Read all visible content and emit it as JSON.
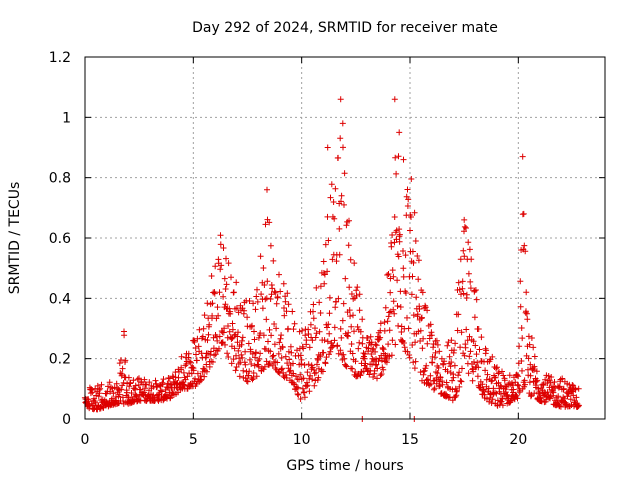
{
  "chart_data": {
    "type": "scatter",
    "title": "Day 292 of 2024, SRMTID for receiver mate",
    "xlabel": "GPS time / hours",
    "ylabel": "SRMTID / TECUs",
    "xlim": [
      0,
      24
    ],
    "ylim": [
      0,
      1.2
    ],
    "xticks": [
      0,
      5,
      10,
      15,
      20
    ],
    "xtick_labels": [
      "0",
      "5",
      "10",
      "15",
      "20"
    ],
    "yticks": [
      0,
      0.2,
      0.4,
      0.6,
      0.8,
      1.0,
      1.2
    ],
    "ytick_labels": [
      "0",
      "0.2",
      "0.4",
      "0.6",
      "0.8",
      "1",
      "1.2"
    ],
    "grid": true,
    "marker": "+",
    "series": [
      {
        "name": "SRMTID",
        "color": "#dd0000",
        "envelope_x": [
          0,
          0.5,
          1,
          1.5,
          1.8,
          2,
          2.5,
          3,
          3.5,
          4,
          4.5,
          5,
          5.5,
          6,
          6.3,
          6.5,
          7,
          7.5,
          8,
          8.4,
          8.6,
          9,
          9.5,
          10,
          10.5,
          11,
          11.3,
          11.5,
          11.8,
          12,
          12.5,
          13,
          13.5,
          14,
          14.3,
          14.5,
          14.8,
          15,
          15.5,
          16,
          16.5,
          17,
          17.3,
          17.5,
          18,
          18.5,
          19,
          19.5,
          20,
          20.2,
          20.4,
          21,
          21.5,
          22,
          22.5,
          22.8
        ],
        "envelope_low": [
          0.04,
          0.03,
          0.04,
          0.05,
          0.05,
          0.05,
          0.06,
          0.06,
          0.06,
          0.07,
          0.1,
          0.1,
          0.14,
          0.2,
          0.25,
          0.22,
          0.15,
          0.12,
          0.14,
          0.18,
          0.18,
          0.15,
          0.12,
          0.06,
          0.1,
          0.16,
          0.22,
          0.25,
          0.2,
          0.18,
          0.14,
          0.15,
          0.13,
          0.18,
          0.22,
          0.26,
          0.22,
          0.2,
          0.13,
          0.1,
          0.08,
          0.06,
          0.1,
          0.15,
          0.12,
          0.06,
          0.04,
          0.05,
          0.07,
          0.1,
          0.08,
          0.06,
          0.05,
          0.04,
          0.04,
          0.04
        ],
        "envelope_high": [
          0.1,
          0.11,
          0.12,
          0.13,
          0.29,
          0.14,
          0.14,
          0.13,
          0.13,
          0.14,
          0.22,
          0.28,
          0.38,
          0.55,
          0.65,
          0.55,
          0.48,
          0.4,
          0.5,
          0.76,
          0.6,
          0.5,
          0.38,
          0.33,
          0.42,
          0.6,
          0.9,
          0.7,
          1.06,
          0.85,
          0.5,
          0.28,
          0.3,
          0.5,
          0.9,
          1.06,
          0.95,
          0.85,
          0.46,
          0.3,
          0.24,
          0.28,
          0.52,
          0.66,
          0.52,
          0.26,
          0.18,
          0.15,
          0.16,
          0.87,
          0.35,
          0.16,
          0.14,
          0.14,
          0.12,
          0.1
        ],
        "values": [
          [
            1.8,
            0.29
          ],
          [
            8.4,
            0.76
          ],
          [
            11.2,
            0.9
          ],
          [
            11.8,
            1.06
          ],
          [
            11.9,
            0.98
          ],
          [
            14.3,
            1.06
          ],
          [
            14.5,
            0.95
          ],
          [
            14.7,
            0.86
          ],
          [
            17.5,
            0.66
          ],
          [
            20.2,
            0.87
          ],
          [
            20.25,
            0.68
          ],
          [
            12.8,
            0.0
          ],
          [
            15.2,
            0.0
          ]
        ]
      }
    ]
  }
}
